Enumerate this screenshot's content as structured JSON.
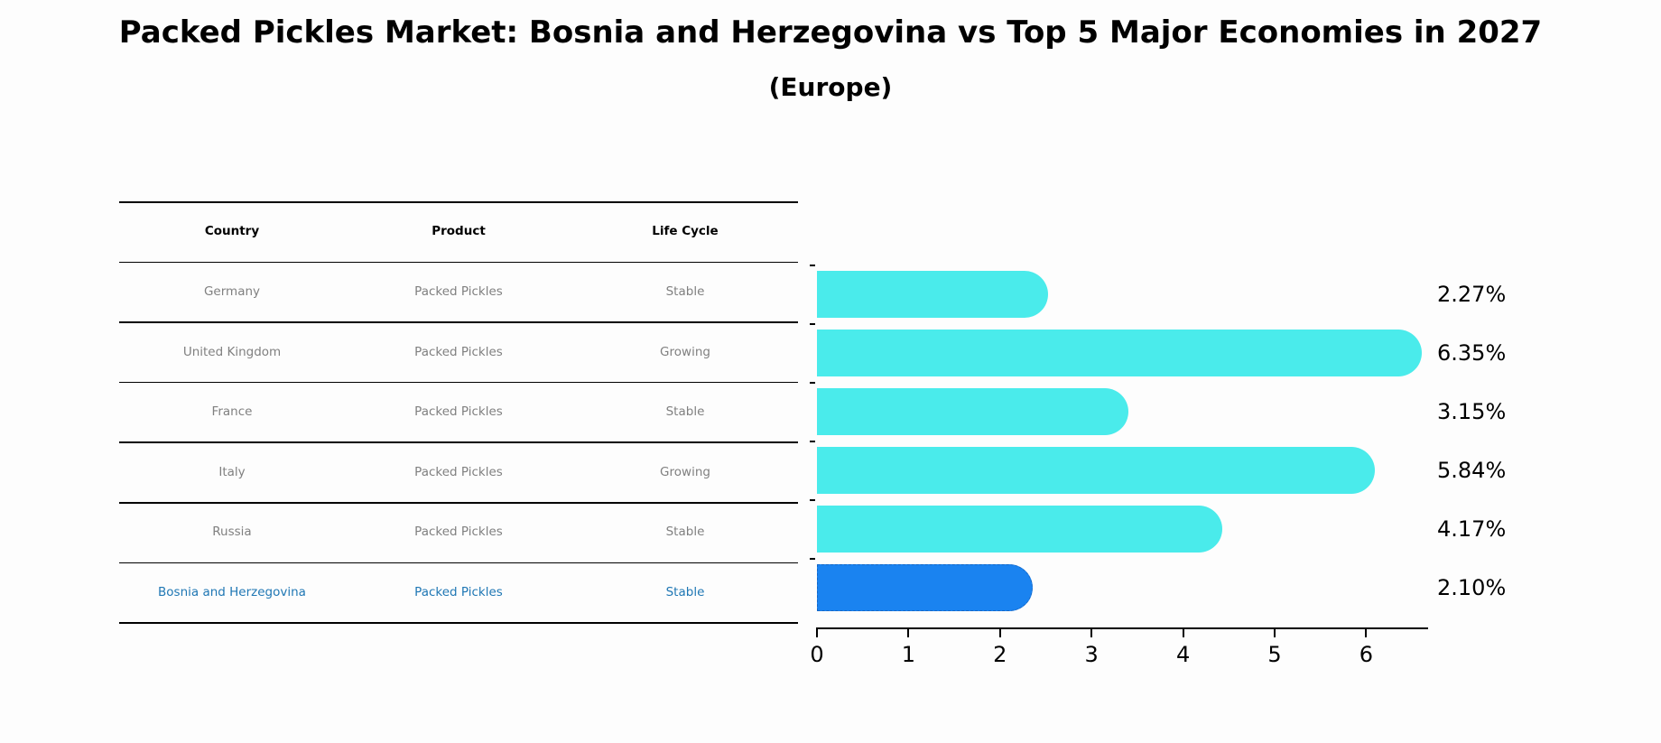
{
  "header": {
    "title": "Packed Pickles Market: Bosnia and Herzegovina vs Top 5 Major Economies in 2027",
    "subtitle": "(Europe)"
  },
  "table": {
    "columns": [
      "Country",
      "Product",
      "Life Cycle"
    ],
    "rows": [
      [
        "Germany",
        "Packed Pickles",
        "Stable"
      ],
      [
        "United Kingdom",
        "Packed Pickles",
        "Growing"
      ],
      [
        "France",
        "Packed Pickles",
        "Stable"
      ],
      [
        "Italy",
        "Packed Pickles",
        "Growing"
      ],
      [
        "Russia",
        "Packed Pickles",
        "Stable"
      ],
      [
        "Bosnia and Herzegovina",
        "Packed Pickles",
        "Stable"
      ]
    ],
    "highlight_row": 5
  },
  "colors": {
    "bar": "#4aebeb",
    "highlight_bar": "#1a83f0",
    "highlight_text": "#1f77b4",
    "row_text": "#808080"
  },
  "labels": [
    "2.27%",
    "6.35%",
    "3.15%",
    "5.84%",
    "4.17%",
    "2.10%"
  ],
  "axis": {
    "ticks": [
      "0",
      "1",
      "2",
      "3",
      "4",
      "5",
      "6"
    ]
  },
  "chart_data": {
    "type": "bar",
    "orientation": "horizontal",
    "title": "Packed Pickles Market: Bosnia and Herzegovina vs Top 5 Major Economies in 2027",
    "subtitle": "(Europe)",
    "categories": [
      "Germany",
      "United Kingdom",
      "France",
      "Italy",
      "Russia",
      "Bosnia and Herzegovina"
    ],
    "values": [
      2.27,
      6.35,
      3.15,
      5.84,
      4.17,
      2.1
    ],
    "value_labels": [
      "2.27%",
      "6.35%",
      "3.15%",
      "5.84%",
      "4.17%",
      "2.10%"
    ],
    "xlabel": "",
    "ylabel": "",
    "xlim": [
      0,
      6.6
    ],
    "xticks": [
      0,
      1,
      2,
      3,
      4,
      5,
      6
    ],
    "grid": false,
    "legend": null,
    "highlight": "Bosnia and Herzegovina"
  }
}
